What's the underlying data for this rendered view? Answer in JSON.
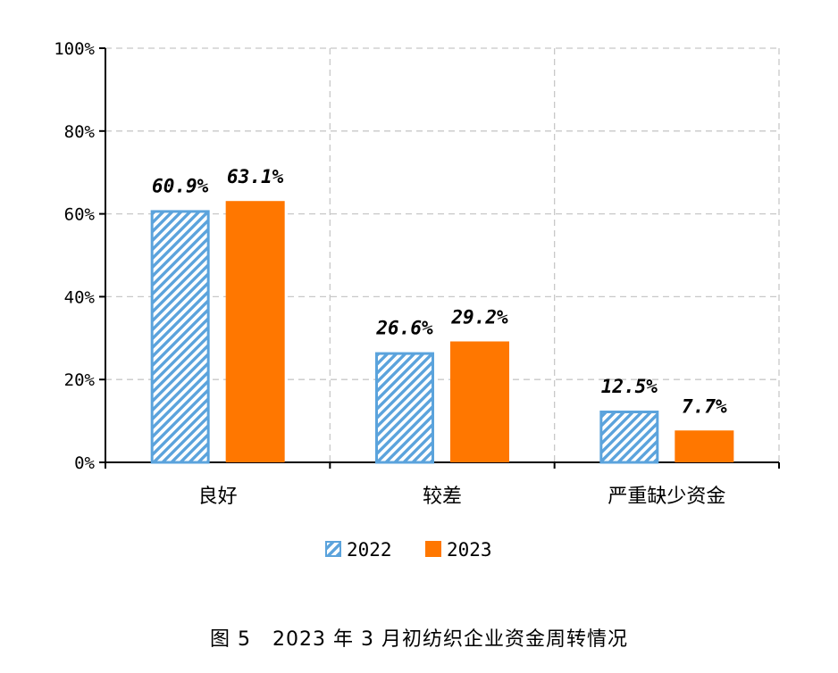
{
  "caption": "图 5   2023 年 3 月初纺织企业资金周转情况",
  "chart_data": {
    "type": "bar",
    "title": "",
    "xlabel": "",
    "ylabel": "",
    "categories": [
      "良好",
      "较差",
      "严重缺少资金"
    ],
    "series": [
      {
        "name": "2022",
        "values": [
          60.9,
          26.6,
          12.5
        ],
        "labels": [
          "60.9%",
          "26.6%",
          "12.5%"
        ],
        "color": "#5BA3DC",
        "pattern": "diagonal-hatch"
      },
      {
        "name": "2023",
        "values": [
          63.1,
          29.2,
          7.7
        ],
        "labels": [
          "63.1%",
          "29.2%",
          "7.7%"
        ],
        "color": "#FF7700",
        "pattern": "solid"
      }
    ],
    "ylim": [
      0,
      100
    ],
    "yticks": [
      {
        "value": 0,
        "label": "0%"
      },
      {
        "value": 20,
        "label": "20%"
      },
      {
        "value": 40,
        "label": "40%"
      },
      {
        "value": 60,
        "label": "60%"
      },
      {
        "value": 80,
        "label": "80%"
      },
      {
        "value": 100,
        "label": "100%"
      }
    ],
    "grid": true,
    "legend": "bottom"
  }
}
